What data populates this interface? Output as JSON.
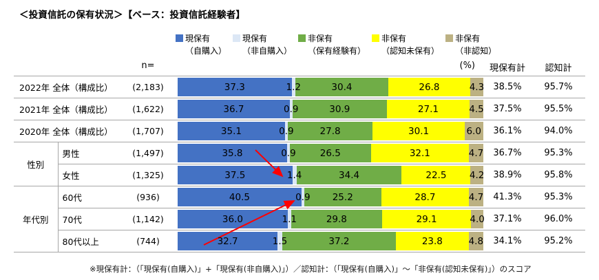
{
  "title": "＜投資信託の保有状況＞【ベース：投資信託経験者】",
  "headers": {
    "n": "n=",
    "pct": "(%)",
    "current_total": "現保有計",
    "aware_total": "認知計"
  },
  "legend": {
    "items": [
      {
        "label": "現保有",
        "sub": "（自購入）",
        "color": "#4472C4"
      },
      {
        "label": "現保有",
        "sub": "（非自購入）",
        "color": "#DCE7F5"
      },
      {
        "label": "非保有",
        "sub": "（保有経験有）",
        "color": "#70AD47"
      },
      {
        "label": "非保有",
        "sub": "（認知未保有）",
        "color": "#FFFF00"
      },
      {
        "label": "非保有",
        "sub": "（非認知）",
        "color": "#BCB183"
      }
    ]
  },
  "footnote": "※現保有計：（「現保有(自購入)」+「現保有(非自購入)」）／認知計：（「現保有(自購入)」～「非保有(認知未保有)」）のスコア",
  "chart_data": {
    "type": "bar",
    "orientation": "horizontal",
    "stacked": true,
    "unit": "%",
    "xlim": [
      0,
      100
    ],
    "title": "投資信託の保有状況（ベース：投資信託経験者）",
    "series_names": [
      "現保有（自購入）",
      "現保有（非自購入）",
      "非保有（保有経験有）",
      "非保有（認知未保有）",
      "非保有（非認知）"
    ],
    "colors": [
      "#4472C4",
      "#DCE7F5",
      "#70AD47",
      "#FFFF00",
      "#BCB183"
    ],
    "rows": [
      {
        "group": null,
        "label": "2022年 全体（構成比）",
        "n": "(2,183)",
        "values": [
          37.3,
          1.2,
          30.4,
          26.8,
          4.3
        ],
        "current_total": "38.5%",
        "aware_total": "95.7%"
      },
      {
        "group": null,
        "label": "2021年 全体（構成比）",
        "n": "(1,622)",
        "values": [
          36.7,
          0.9,
          30.9,
          27.1,
          4.5
        ],
        "current_total": "37.5%",
        "aware_total": "95.5%"
      },
      {
        "group": null,
        "label": "2020年 全体（構成比）",
        "n": "(1,707)",
        "values": [
          35.1,
          0.9,
          27.8,
          30.1,
          6.0
        ],
        "current_total": "36.1%",
        "aware_total": "94.0%"
      },
      {
        "group": "性別",
        "group_span": 2,
        "label": "男性",
        "n": "(1,497)",
        "values": [
          35.8,
          0.9,
          26.5,
          32.1,
          4.7
        ],
        "current_total": "36.7%",
        "aware_total": "95.3%"
      },
      {
        "label": "女性",
        "n": "(1,325)",
        "values": [
          37.5,
          1.4,
          34.4,
          22.5,
          4.2
        ],
        "current_total": "38.9%",
        "aware_total": "95.8%"
      },
      {
        "group": "年代別",
        "group_span": 3,
        "label": "60代",
        "n": "(936)",
        "values": [
          40.5,
          0.9,
          25.2,
          28.7,
          4.7
        ],
        "current_total": "41.3%",
        "aware_total": "95.3%"
      },
      {
        "label": "70代",
        "n": "(1,142)",
        "values": [
          36.0,
          1.1,
          29.8,
          29.1,
          4.0
        ],
        "current_total": "37.1%",
        "aware_total": "96.0%"
      },
      {
        "label": "80代以上",
        "n": "(744)",
        "values": [
          32.7,
          1.5,
          37.2,
          23.8,
          4.8
        ],
        "current_total": "34.1%",
        "aware_total": "95.2%"
      }
    ]
  },
  "annotations": {
    "arrow_color": "#FF0000",
    "arrows": [
      {
        "from": [
          371,
          218
        ],
        "to": [
          410,
          256
        ]
      },
      {
        "from": [
          296,
          356
        ],
        "to": [
          427,
          292
        ]
      }
    ]
  }
}
